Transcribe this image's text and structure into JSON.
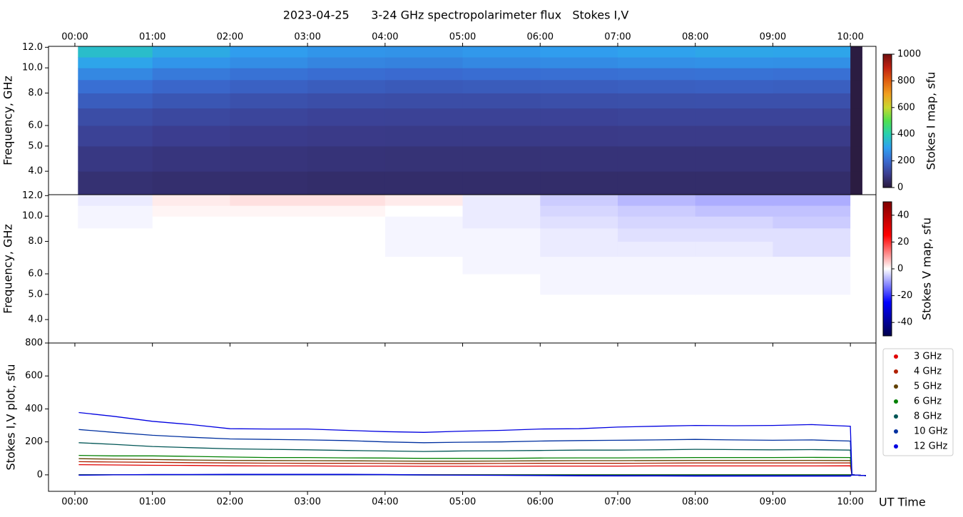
{
  "chart_data": [
    {
      "type": "heatmap",
      "title": "2023-04-25      3-24 GHz spectropolarimeter flux   Stokes I,V",
      "ylabel": "Frequency, GHz",
      "colorbar_label": "Stokes I map, sfu",
      "xlim": [
        -0.34,
        10.33
      ],
      "xticks": [
        {
          "value": 0,
          "label": "00:00"
        },
        {
          "value": 1,
          "label": "01:00"
        },
        {
          "value": 2,
          "label": "02:00"
        },
        {
          "value": 3,
          "label": "03:00"
        },
        {
          "value": 4,
          "label": "04:00"
        },
        {
          "value": 5,
          "label": "05:00"
        },
        {
          "value": 6,
          "label": "06:00"
        },
        {
          "value": 7,
          "label": "07:00"
        },
        {
          "value": 8,
          "label": "08:00"
        },
        {
          "value": 9,
          "label": "09:00"
        },
        {
          "value": 10,
          "label": "10:00"
        }
      ],
      "log_y": true,
      "ylim": [
        3.25,
        12.1
      ],
      "yticks": [
        {
          "value": 4,
          "label": "4.0"
        },
        {
          "value": 5,
          "label": "5.0"
        },
        {
          "value": 6,
          "label": "6.0"
        },
        {
          "value": 8,
          "label": "8.0"
        },
        {
          "value": 10,
          "label": "10.0"
        },
        {
          "value": 12,
          "label": "12.0"
        }
      ],
      "xedges": [
        0.04,
        1,
        2,
        3,
        4,
        5,
        6,
        7,
        8,
        9,
        10,
        10.15
      ],
      "yedges": [
        3.25,
        4,
        5,
        6,
        7,
        8,
        9,
        10,
        11,
        12.1
      ],
      "values": [
        [
          65,
          60,
          58,
          55,
          55,
          55,
          55,
          55,
          55,
          55,
          5
        ],
        [
          85,
          78,
          75,
          72,
          70,
          70,
          72,
          72,
          72,
          72,
          5
        ],
        [
          110,
          100,
          95,
          92,
          90,
          90,
          92,
          93,
          93,
          93,
          5
        ],
        [
          135,
          125,
          118,
          112,
          110,
          110,
          112,
          115,
          115,
          115,
          5
        ],
        [
          170,
          155,
          145,
          138,
          135,
          135,
          140,
          142,
          143,
          143,
          5
        ],
        [
          210,
          190,
          180,
          170,
          165,
          168,
          172,
          175,
          178,
          176,
          5
        ],
        [
          255,
          230,
          215,
          205,
          200,
          205,
          210,
          213,
          215,
          212,
          5
        ],
        [
          310,
          280,
          265,
          250,
          245,
          255,
          262,
          268,
          272,
          270,
          5
        ],
        [
          360,
          320,
          295,
          280,
          275,
          285,
          295,
          305,
          312,
          310,
          5
        ]
      ],
      "colormap": [
        "#2a1a3d",
        "#3b3d8f",
        "#3a6ad0",
        "#2fa0f0",
        "#27d0b0",
        "#50e050",
        "#c8d830",
        "#f0a020",
        "#e06010",
        "#c02010",
        "#701010"
      ],
      "clim": [
        0,
        1000
      ],
      "cticks": [
        0,
        200,
        400,
        600,
        800,
        1000
      ]
    },
    {
      "type": "heatmap",
      "ylabel": "Frequency, GHz",
      "colorbar_label": "Stokes V map, sfu",
      "xlim": [
        -0.34,
        10.33
      ],
      "log_y": true,
      "ylim": [
        3.25,
        12.1
      ],
      "yticks": [
        {
          "value": 4,
          "label": "4.0"
        },
        {
          "value": 5,
          "label": "5.0"
        },
        {
          "value": 6,
          "label": "6.0"
        },
        {
          "value": 8,
          "label": "8.0"
        },
        {
          "value": 10,
          "label": "10.0"
        },
        {
          "value": 12,
          "label": "12.0"
        }
      ],
      "xedges": [
        0.04,
        1,
        2,
        3,
        4,
        5,
        6,
        7,
        8,
        9,
        10,
        10.15
      ],
      "yedges": [
        3.25,
        4,
        5,
        6,
        7,
        8,
        9,
        10,
        11,
        12.1
      ],
      "values": [
        [
          0,
          0,
          0,
          0,
          0,
          0,
          0,
          0,
          0,
          0,
          0
        ],
        [
          0,
          0,
          0,
          0,
          0,
          0,
          0,
          0,
          0,
          0,
          0
        ],
        [
          0,
          0,
          0,
          0,
          0,
          0,
          -1,
          -1,
          -1,
          -1,
          0
        ],
        [
          0,
          0,
          0,
          0,
          0,
          -1,
          -1,
          -1,
          -1,
          -1,
          0
        ],
        [
          0,
          0,
          0,
          0,
          -1,
          -1,
          -2,
          -2,
          -2,
          -3,
          0
        ],
        [
          0,
          0,
          0,
          0,
          -1,
          -1,
          -2,
          -3,
          -3,
          -3,
          0
        ],
        [
          -1,
          0,
          0,
          0,
          -1,
          -2,
          -3,
          -4,
          -4,
          -5,
          0
        ],
        [
          -1,
          1,
          1,
          1,
          0,
          -2,
          -4,
          -5,
          -6,
          -6,
          0
        ],
        [
          -2,
          2,
          3,
          3,
          2,
          -2,
          -5,
          -7,
          -8,
          -8,
          0
        ]
      ],
      "colormap": [
        "#00004c",
        "#0000ff",
        "#ffffff",
        "#ff0000",
        "#7f0000"
      ],
      "clim": [
        -50,
        50
      ],
      "cticks": [
        -40,
        -20,
        0,
        20,
        40
      ]
    },
    {
      "type": "line",
      "ylabel": "Stokes I,V plot, sfu",
      "xlabel": "UT Time",
      "xlim": [
        -0.34,
        10.33
      ],
      "xticks": [
        {
          "value": 0,
          "label": "00:00"
        },
        {
          "value": 1,
          "label": "01:00"
        },
        {
          "value": 2,
          "label": "02:00"
        },
        {
          "value": 3,
          "label": "03:00"
        },
        {
          "value": 4,
          "label": "04:00"
        },
        {
          "value": 5,
          "label": "05:00"
        },
        {
          "value": 6,
          "label": "06:00"
        },
        {
          "value": 7,
          "label": "07:00"
        },
        {
          "value": 8,
          "label": "08:00"
        },
        {
          "value": 9,
          "label": "09:00"
        },
        {
          "value": 10,
          "label": "10:00"
        }
      ],
      "ylim": [
        -100,
        800
      ],
      "yticks": [
        0,
        200,
        400,
        600,
        800
      ],
      "legend": "right",
      "x": [
        0.05,
        0.5,
        1,
        1.5,
        2,
        2.5,
        3,
        3.5,
        4,
        4.5,
        5,
        5.5,
        6,
        6.5,
        7,
        7.5,
        8,
        8.5,
        9,
        9.5,
        10,
        10.02,
        10.2
      ],
      "series": [
        {
          "name": "3 GHz",
          "color": "#e00000",
          "values": [
            62,
            60,
            58,
            57,
            55,
            54,
            54,
            53,
            53,
            52,
            52,
            52,
            53,
            53,
            53,
            54,
            54,
            54,
            54,
            54,
            55,
            0,
            -5
          ],
          "v_values": [
            0,
            0,
            0,
            0,
            0,
            0,
            0,
            0,
            0,
            0,
            0,
            0,
            0,
            0,
            0,
            0,
            0,
            0,
            0,
            0,
            0,
            0,
            -5
          ]
        },
        {
          "name": "4 GHz",
          "color": "#b02000",
          "values": [
            80,
            78,
            76,
            74,
            72,
            71,
            70,
            70,
            69,
            68,
            68,
            69,
            70,
            70,
            70,
            71,
            72,
            72,
            72,
            72,
            72,
            0,
            -5
          ],
          "v_values": [
            0,
            0,
            0,
            0,
            0,
            0,
            0,
            0,
            0,
            0,
            0,
            0,
            0,
            0,
            0,
            0,
            0,
            0,
            0,
            0,
            0,
            0,
            -5
          ]
        },
        {
          "name": "5 GHz",
          "color": "#604000",
          "values": [
            98,
            95,
            93,
            90,
            88,
            87,
            86,
            85,
            84,
            83,
            83,
            84,
            85,
            86,
            86,
            87,
            88,
            88,
            88,
            88,
            87,
            0,
            -5
          ],
          "v_values": [
            0,
            0,
            0,
            0,
            0,
            0,
            0,
            0,
            0,
            0,
            0,
            0,
            0,
            0,
            0,
            0,
            0,
            0,
            0,
            0,
            0,
            0,
            -5
          ]
        },
        {
          "name": "6 GHz",
          "color": "#008000",
          "values": [
            118,
            115,
            115,
            112,
            108,
            105,
            105,
            103,
            102,
            100,
            100,
            100,
            102,
            103,
            103,
            104,
            105,
            105,
            105,
            106,
            105,
            0,
            -5
          ],
          "v_values": [
            0,
            0,
            0,
            0,
            0,
            0,
            0,
            0,
            0,
            0,
            0,
            0,
            0,
            0,
            0,
            0,
            0,
            0,
            0,
            0,
            0,
            0,
            -5
          ]
        },
        {
          "name": "8 GHz",
          "color": "#005555",
          "values": [
            195,
            185,
            172,
            165,
            158,
            155,
            152,
            148,
            145,
            142,
            145,
            146,
            148,
            150,
            150,
            152,
            155,
            153,
            152,
            153,
            150,
            0,
            -5
          ],
          "v_values": [
            0,
            0,
            0,
            0,
            0,
            0,
            0,
            0,
            0,
            -1,
            -1,
            -1,
            -1,
            -2,
            -2,
            -2,
            -2,
            -2,
            -2,
            -2,
            -2,
            0,
            -5
          ]
        },
        {
          "name": "10 GHz",
          "color": "#0030a0",
          "values": [
            275,
            258,
            240,
            228,
            218,
            215,
            212,
            208,
            200,
            195,
            198,
            200,
            205,
            208,
            210,
            212,
            215,
            212,
            210,
            212,
            205,
            0,
            -5
          ],
          "v_values": [
            -1,
            0,
            0,
            0,
            0,
            0,
            0,
            0,
            0,
            -1,
            -1,
            -2,
            -3,
            -4,
            -4,
            -4,
            -5,
            -5,
            -5,
            -5,
            -5,
            0,
            -5
          ]
        },
        {
          "name": "12 GHz",
          "color": "#0000e0",
          "values": [
            378,
            355,
            325,
            305,
            280,
            278,
            278,
            270,
            262,
            258,
            265,
            270,
            278,
            280,
            290,
            295,
            300,
            298,
            300,
            305,
            295,
            0,
            -5
          ],
          "v_values": [
            -2,
            0,
            2,
            2,
            3,
            3,
            3,
            3,
            2,
            0,
            -2,
            -3,
            -5,
            -6,
            -7,
            -7,
            -8,
            -8,
            -8,
            -8,
            -8,
            0,
            -5
          ]
        }
      ]
    }
  ]
}
